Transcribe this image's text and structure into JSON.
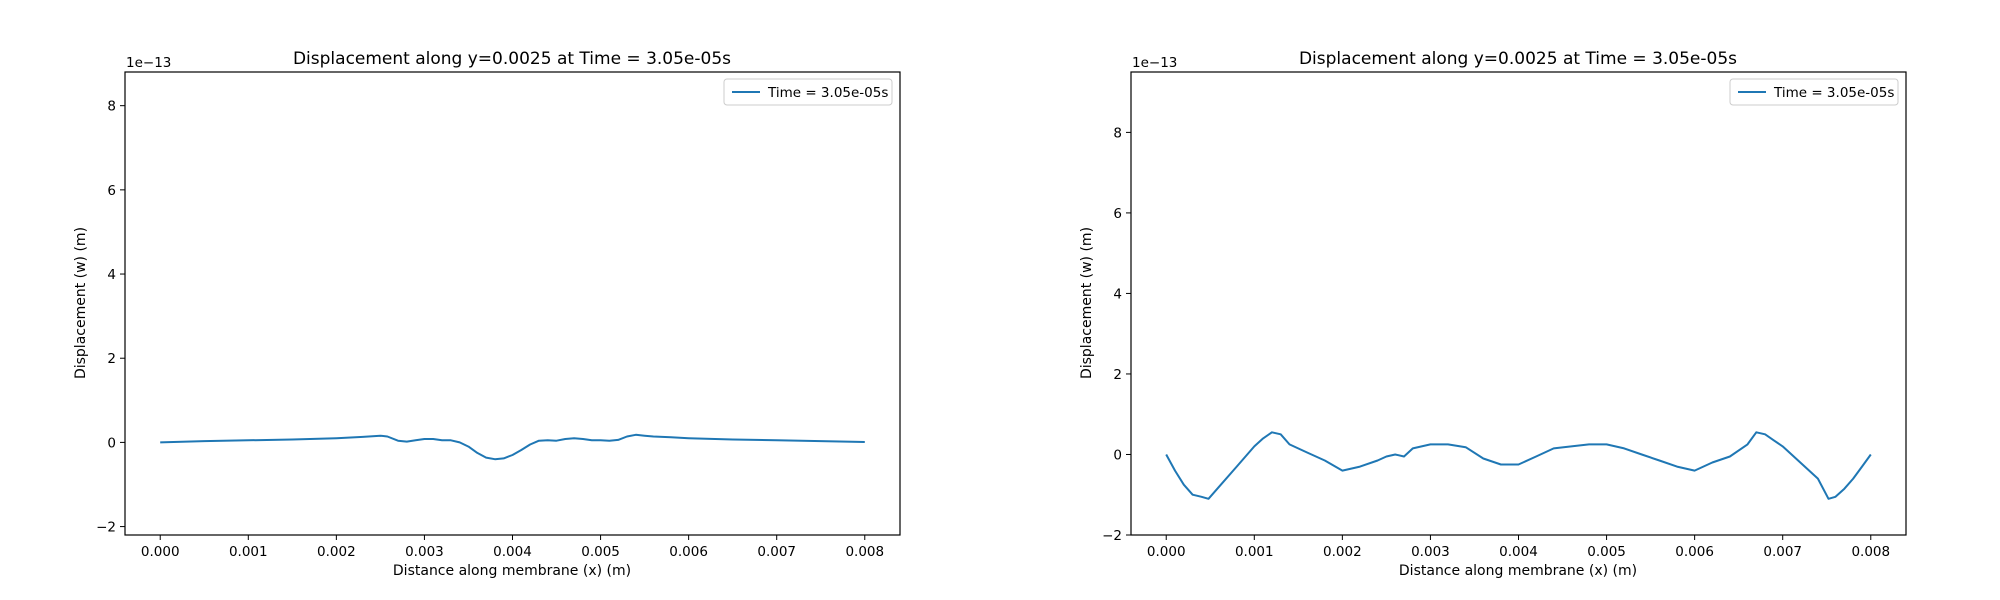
{
  "chart_data": [
    {
      "type": "line",
      "title": "Displacement along y=0.0025 at Time = 3.05e-05s",
      "xlabel": "Distance along membrane (x) (m)",
      "ylabel": "Displacement (w) (m)",
      "y_offset_label": "1e−13",
      "xlim": [
        -0.0004,
        0.0084
      ],
      "ylim": [
        -2.2,
        8.8
      ],
      "xticks": [
        0.0,
        0.001,
        0.002,
        0.003,
        0.004,
        0.005,
        0.006,
        0.007,
        0.008
      ],
      "xtick_labels": [
        "0.000",
        "0.001",
        "0.002",
        "0.003",
        "0.004",
        "0.005",
        "0.006",
        "0.007",
        "0.008"
      ],
      "yticks": [
        -2,
        0,
        2,
        4,
        6,
        8
      ],
      "ytick_labels": [
        "−2",
        "0",
        "2",
        "4",
        "6",
        "8"
      ],
      "grid": false,
      "legend_position": "top-right",
      "color": "#1f77b4",
      "series": [
        {
          "name": "Time = 3.05e-05s",
          "x": [
            0.0,
            0.0005,
            0.001,
            0.0015,
            0.002,
            0.0023,
            0.0025,
            0.00258,
            0.0027,
            0.0028,
            0.0029,
            0.003,
            0.0031,
            0.0032,
            0.0033,
            0.0034,
            0.0035,
            0.0036,
            0.0037,
            0.0038,
            0.0039,
            0.004,
            0.0041,
            0.0042,
            0.0043,
            0.0044,
            0.0045,
            0.0046,
            0.0047,
            0.0048,
            0.0049,
            0.005,
            0.0051,
            0.0052,
            0.0053,
            0.0054,
            0.0055,
            0.0056,
            0.0058,
            0.006,
            0.0065,
            0.007,
            0.0075,
            0.008
          ],
          "y": [
            0.0,
            0.03,
            0.05,
            0.07,
            0.1,
            0.13,
            0.16,
            0.14,
            0.04,
            0.02,
            0.05,
            0.08,
            0.08,
            0.05,
            0.05,
            0.0,
            -0.1,
            -0.25,
            -0.36,
            -0.4,
            -0.38,
            -0.3,
            -0.18,
            -0.05,
            0.04,
            0.05,
            0.04,
            0.08,
            0.1,
            0.08,
            0.05,
            0.05,
            0.04,
            0.06,
            0.14,
            0.18,
            0.16,
            0.14,
            0.12,
            0.1,
            0.07,
            0.05,
            0.03,
            0.01
          ]
        }
      ]
    },
    {
      "type": "line",
      "title": "Displacement along y=0.0025 at Time = 3.05e-05s",
      "xlabel": "Distance along membrane (x) (m)",
      "ylabel": "Displacement (w) (m)",
      "y_offset_label": "1e−13",
      "xlim": [
        -0.0004,
        0.0084
      ],
      "ylim": [
        -2.0,
        9.5
      ],
      "xticks": [
        0.0,
        0.001,
        0.002,
        0.003,
        0.004,
        0.005,
        0.006,
        0.007,
        0.008
      ],
      "xtick_labels": [
        "0.000",
        "0.001",
        "0.002",
        "0.003",
        "0.004",
        "0.005",
        "0.006",
        "0.007",
        "0.008"
      ],
      "yticks": [
        -2,
        0,
        2,
        4,
        6,
        8
      ],
      "ytick_labels": [
        "−2",
        "0",
        "2",
        "4",
        "6",
        "8"
      ],
      "grid": false,
      "legend_position": "top-right",
      "color": "#1f77b4",
      "series": [
        {
          "name": "Time = 3.05e-05s",
          "x": [
            0.0,
            0.0001,
            0.0002,
            0.0003,
            0.0004,
            0.00048,
            0.0006,
            0.0008,
            0.001,
            0.0011,
            0.0012,
            0.0013,
            0.0014,
            0.0016,
            0.0018,
            0.002,
            0.0022,
            0.0024,
            0.0025,
            0.0026,
            0.0027,
            0.0028,
            0.003,
            0.0032,
            0.0034,
            0.0036,
            0.0038,
            0.004,
            0.0042,
            0.0044,
            0.0046,
            0.0048,
            0.005,
            0.0052,
            0.0054,
            0.0056,
            0.0058,
            0.006,
            0.0062,
            0.0064,
            0.0066,
            0.0067,
            0.0068,
            0.0069,
            0.007,
            0.0072,
            0.0074,
            0.00752,
            0.0076,
            0.0077,
            0.0078,
            0.0079,
            0.008
          ],
          "y": [
            0.0,
            -0.4,
            -0.75,
            -1.0,
            -1.05,
            -1.1,
            -0.8,
            -0.3,
            0.2,
            0.4,
            0.55,
            0.5,
            0.25,
            0.05,
            -0.15,
            -0.4,
            -0.3,
            -0.15,
            -0.05,
            0.0,
            -0.05,
            0.15,
            0.25,
            0.25,
            0.18,
            -0.1,
            -0.25,
            -0.25,
            -0.05,
            0.15,
            0.2,
            0.25,
            0.25,
            0.15,
            0.0,
            -0.15,
            -0.3,
            -0.4,
            -0.2,
            -0.05,
            0.25,
            0.55,
            0.5,
            0.35,
            0.2,
            -0.2,
            -0.6,
            -1.1,
            -1.05,
            -0.85,
            -0.6,
            -0.3,
            0.0
          ]
        }
      ]
    }
  ]
}
